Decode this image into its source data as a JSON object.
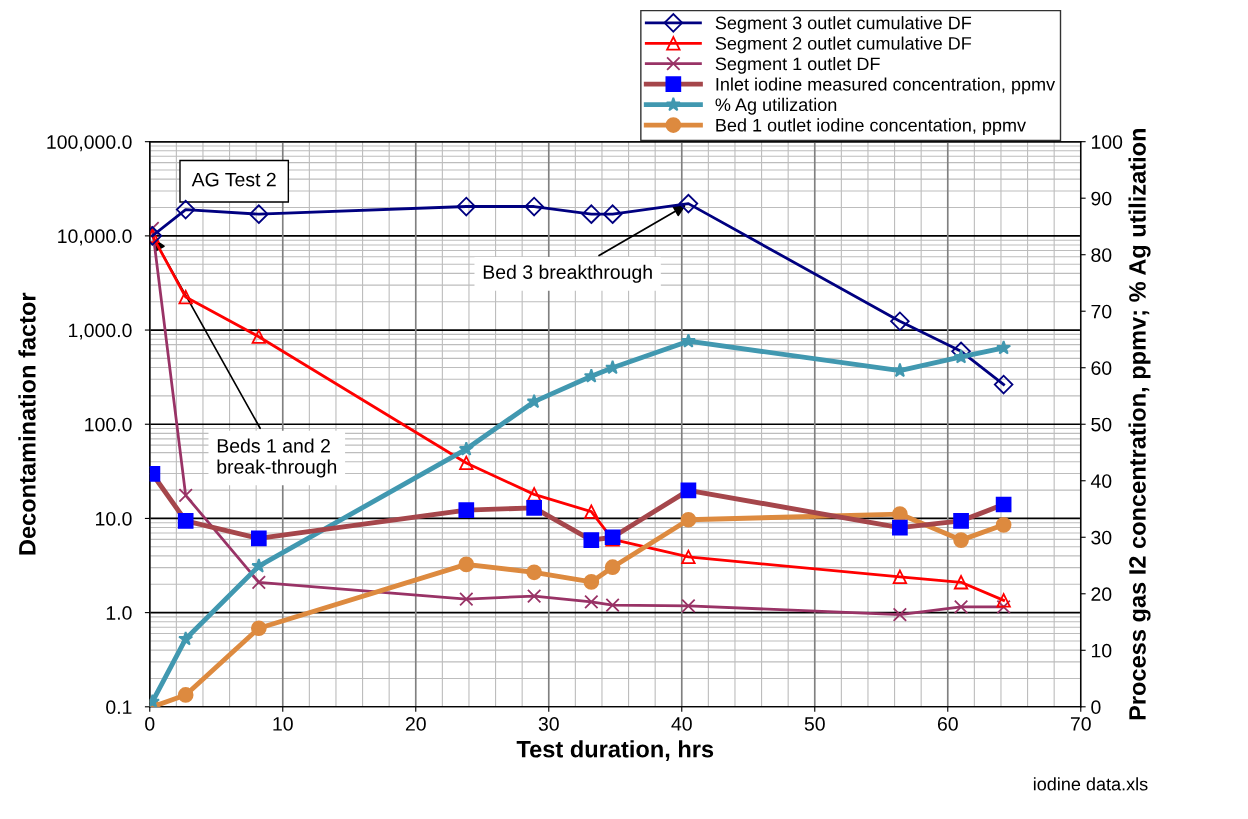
{
  "chart_data": {
    "type": "line",
    "xlabel": "Test duration, hrs",
    "ylabel": "Decontamination factor",
    "y2label": "Process gas I2 concentration, ppmv; % Ag utilization",
    "x": [
      0.2,
      2.7,
      8.2,
      23.8,
      28.9,
      33.2,
      34.8,
      40.5,
      56.4,
      61.0,
      64.2
    ],
    "series": [
      {
        "name": "Segment 3 outlet cumulative DF",
        "color": "#000080",
        "marker": "diamond",
        "values": [
          10000,
          19000,
          17000,
          20500,
          20500,
          17000,
          17000,
          22000,
          1240,
          594,
          264
        ]
      },
      {
        "name": "Segment 2 outlet cumulative DF",
        "color": "#ff0000",
        "marker": "triangle",
        "values": [
          10000,
          2240,
          850,
          38.8,
          18,
          11.8,
          6.0,
          3.9,
          2.4,
          2.1,
          1.35
        ]
      },
      {
        "name": "Segment 1 outlet DF",
        "color": "#993366",
        "marker": "cross",
        "values": [
          12000,
          17.6,
          2.1,
          1.39,
          1.5,
          1.3,
          1.2,
          1.18,
          0.95,
          1.15,
          1.15
        ]
      },
      {
        "name": "Inlet iodine measured concentration, ppmv",
        "color": "#a5464b",
        "marker": "square",
        "axis": "y2",
        "values": [
          41.2,
          32.9,
          29.8,
          34.8,
          35.2,
          29.5,
          30.0,
          38.3,
          31.7,
          32.9,
          35.8
        ]
      },
      {
        "name": "% Ag utilization",
        "color": "#4198b0",
        "marker": "star",
        "axis": "y2",
        "values": [
          0.9,
          12.0,
          24.9,
          45.6,
          54.0,
          58.5,
          60.0,
          64.7,
          59.5,
          61.9,
          63.5
        ]
      },
      {
        "name": "Bed 1 outlet iodine concentation, ppmv",
        "color": "#dd8a3f",
        "marker": "circle",
        "axis": "y2",
        "values": [
          0,
          2.1,
          13.9,
          25.2,
          23.8,
          22.1,
          24.7,
          33.1,
          34.1,
          29.5,
          32.2
        ]
      }
    ],
    "log": "y",
    "xlim": [
      0,
      70
    ],
    "xticks": [
      0,
      10,
      20,
      30,
      40,
      50,
      60,
      70
    ],
    "ylim": [
      0.1,
      100000
    ],
    "yticks": [
      {
        "value": 0.1,
        "label": "0.1"
      },
      {
        "value": 1,
        "label": "1.0"
      },
      {
        "value": 10,
        "label": "10.0"
      },
      {
        "value": 100,
        "label": "100.0"
      },
      {
        "value": 1000,
        "label": "1,000.0"
      },
      {
        "value": 10000,
        "label": "10,000.0"
      },
      {
        "value": 100000,
        "label": "100,000.0"
      }
    ],
    "y2lim": [
      0,
      100
    ],
    "y2ticks": [
      0,
      10,
      20,
      30,
      40,
      50,
      60,
      70,
      80,
      90,
      100
    ],
    "grid": true,
    "legend": "top right",
    "line_style": "solid",
    "annotations": [
      "AG Test 2",
      {
        "text": "Bed 3 breakthrough",
        "x": 40.5,
        "y": 22000
      },
      {
        "text": "Beds 1 and 2\nbreak-through",
        "x": 0.2,
        "y": 10000
      },
      "iodine data.xls"
    ]
  }
}
